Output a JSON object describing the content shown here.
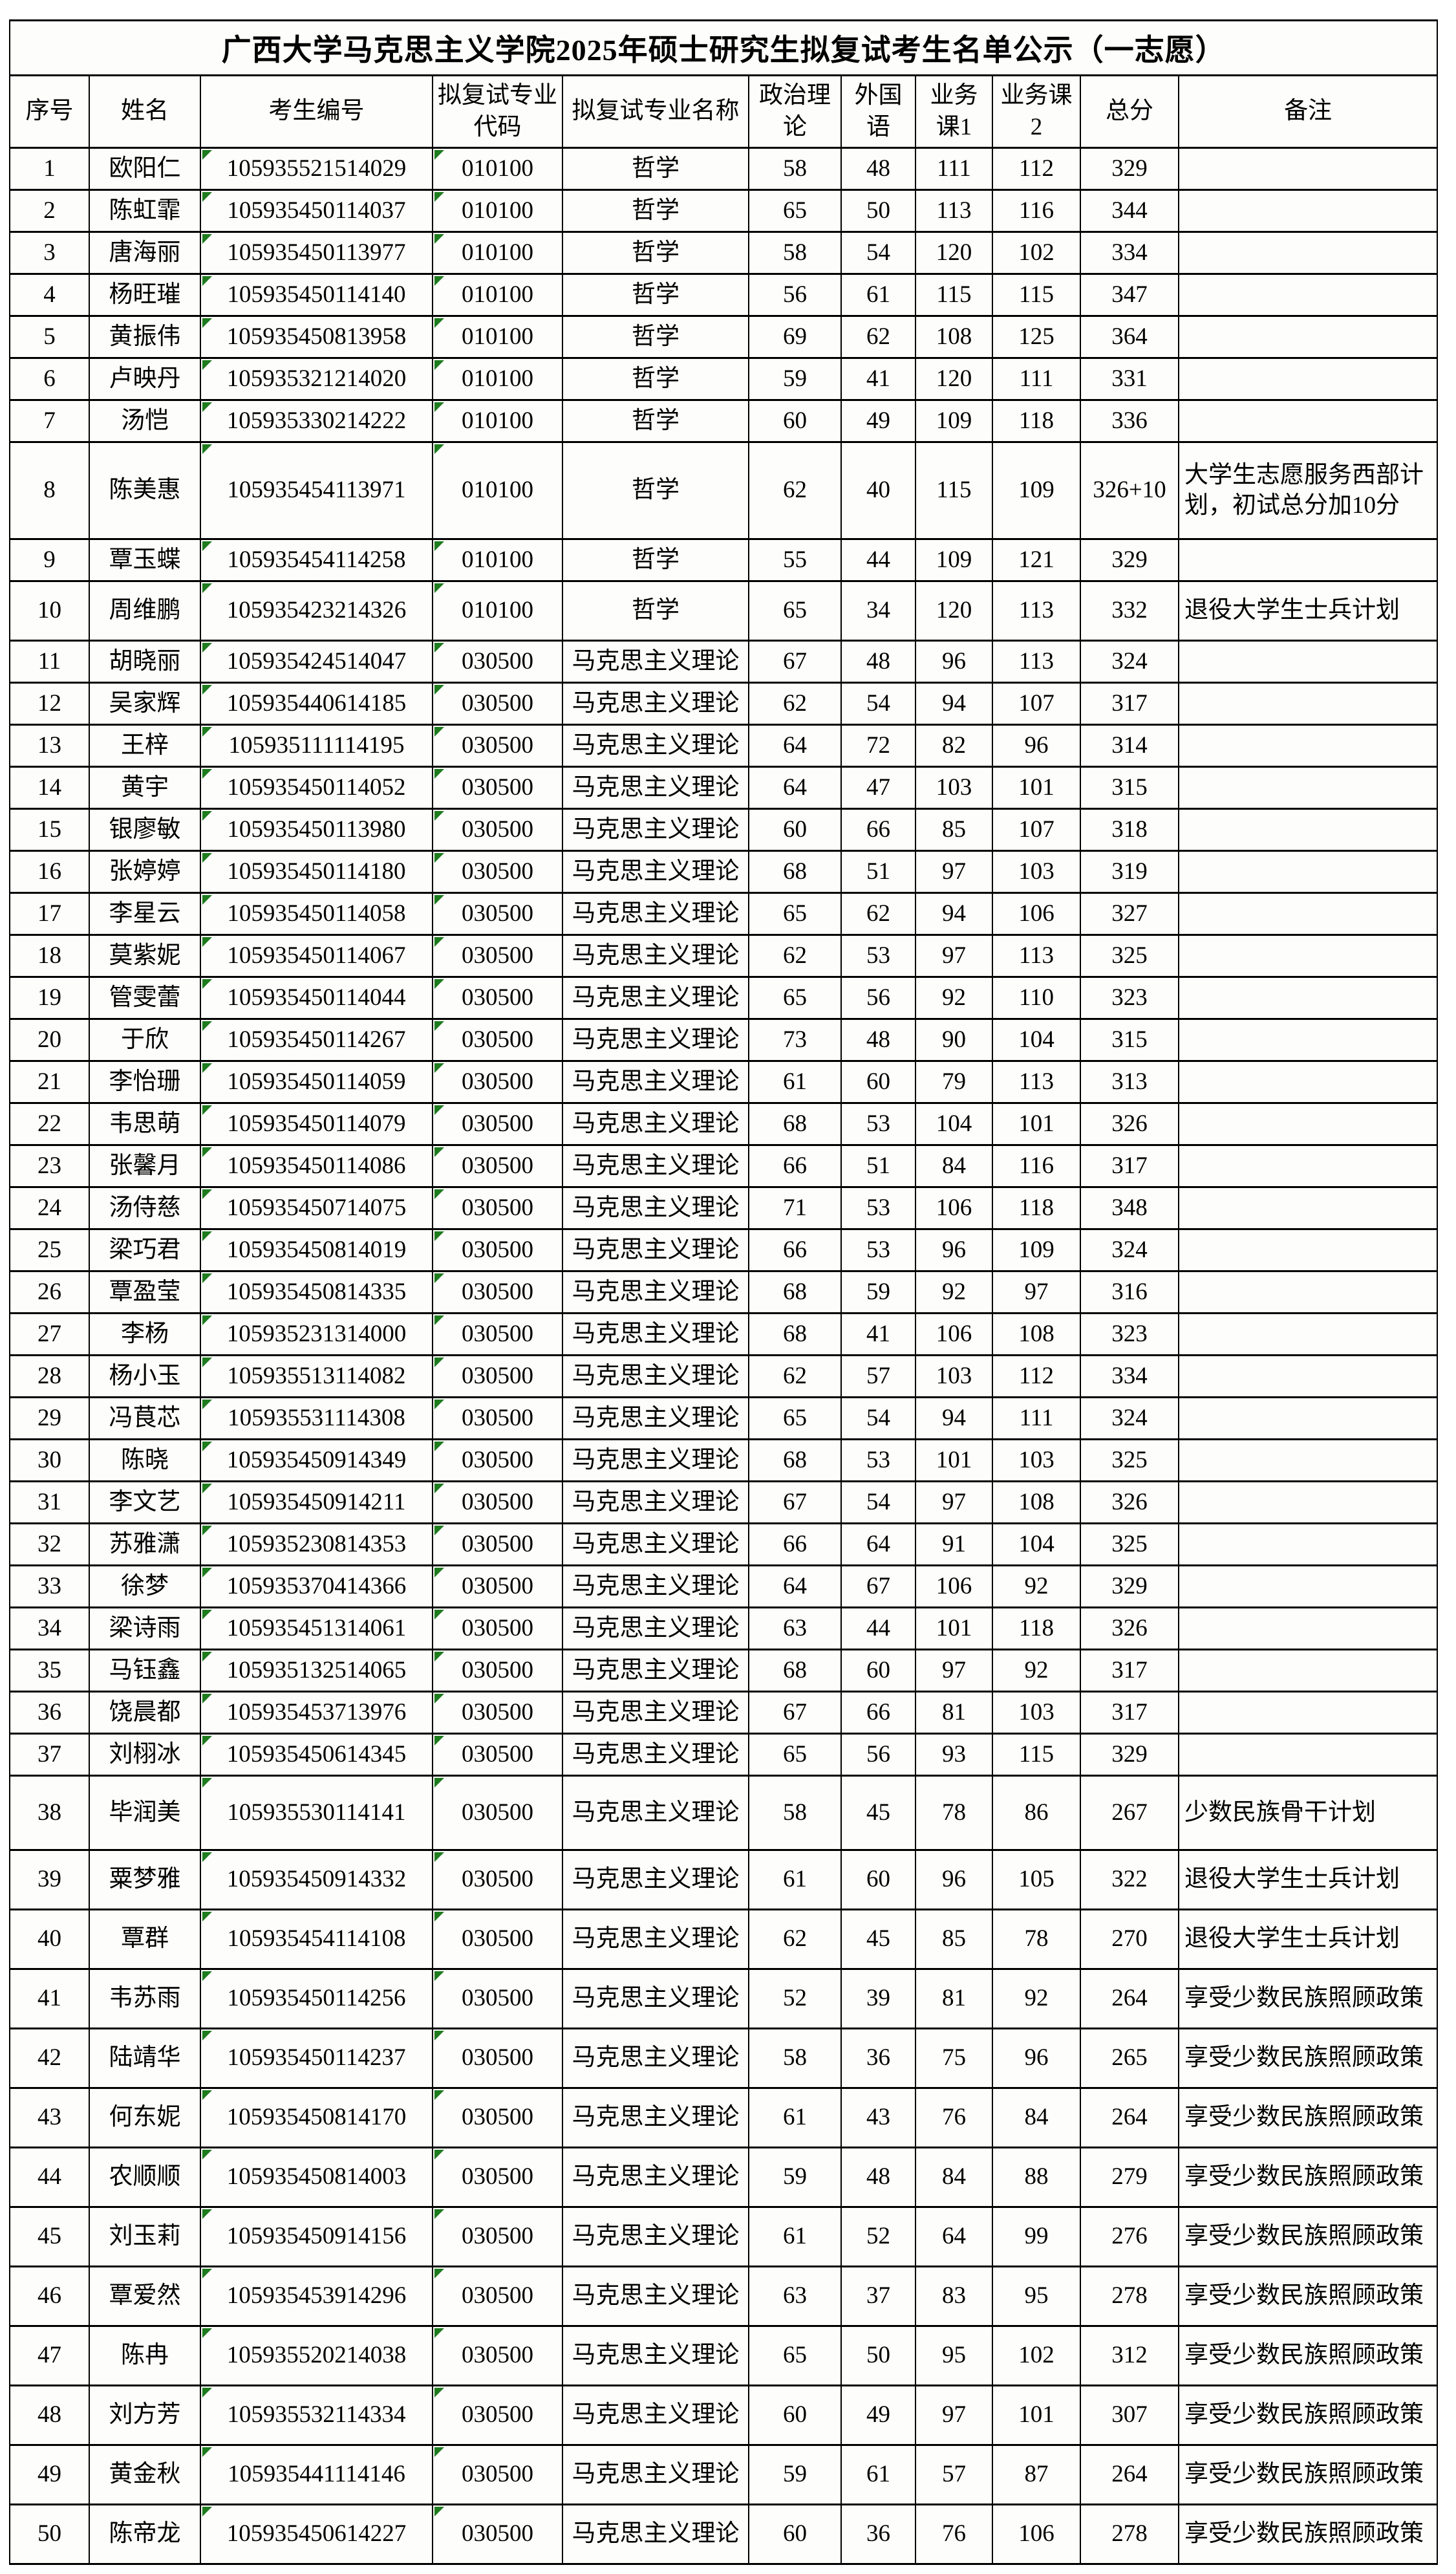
{
  "title": "广西大学马克思主义学院2025年硕士研究生拟复试考生名单公示（一志愿）",
  "colors": {
    "border": "#000000",
    "text": "#000000",
    "cell_background": "#fdfdfb",
    "flag_triangle_green": "#1e7b1e"
  },
  "table": {
    "columns": [
      "序号",
      "姓名",
      "考生编号",
      "拟复试专业代码",
      "拟复试专业名称",
      "政治理论",
      "外国语",
      "业务课1",
      "业务课2",
      "总分",
      "备注"
    ],
    "rows": [
      {
        "seq": "1",
        "name": "欧阳仁",
        "candidate_no": "105935521514029",
        "major_code": "010100",
        "major_name": "哲学",
        "politics": "58",
        "foreign_lang": "48",
        "course1": "111",
        "course2": "112",
        "total": "329",
        "remark": ""
      },
      {
        "seq": "2",
        "name": "陈虹霏",
        "candidate_no": "105935450114037",
        "major_code": "010100",
        "major_name": "哲学",
        "politics": "65",
        "foreign_lang": "50",
        "course1": "113",
        "course2": "116",
        "total": "344",
        "remark": ""
      },
      {
        "seq": "3",
        "name": "唐海丽",
        "candidate_no": "105935450113977",
        "major_code": "010100",
        "major_name": "哲学",
        "politics": "58",
        "foreign_lang": "54",
        "course1": "120",
        "course2": "102",
        "total": "334",
        "remark": ""
      },
      {
        "seq": "4",
        "name": "杨旺璀",
        "candidate_no": "105935450114140",
        "major_code": "010100",
        "major_name": "哲学",
        "politics": "56",
        "foreign_lang": "61",
        "course1": "115",
        "course2": "115",
        "total": "347",
        "remark": ""
      },
      {
        "seq": "5",
        "name": "黄振伟",
        "candidate_no": "105935450813958",
        "major_code": "010100",
        "major_name": "哲学",
        "politics": "69",
        "foreign_lang": "62",
        "course1": "108",
        "course2": "125",
        "total": "364",
        "remark": ""
      },
      {
        "seq": "6",
        "name": "卢映丹",
        "candidate_no": "105935321214020",
        "major_code": "010100",
        "major_name": "哲学",
        "politics": "59",
        "foreign_lang": "41",
        "course1": "120",
        "course2": "111",
        "total": "331",
        "remark": ""
      },
      {
        "seq": "7",
        "name": "汤恺",
        "candidate_no": "105935330214222",
        "major_code": "010100",
        "major_name": "哲学",
        "politics": "60",
        "foreign_lang": "49",
        "course1": "109",
        "course2": "118",
        "total": "336",
        "remark": ""
      },
      {
        "seq": "8",
        "name": "陈美惠",
        "candidate_no": "105935454113971",
        "major_code": "010100",
        "major_name": "哲学",
        "politics": "62",
        "foreign_lang": "40",
        "course1": "115",
        "course2": "109",
        "total": "326+10",
        "remark": "大学生志愿服务西部计划，初试总分加10分"
      },
      {
        "seq": "9",
        "name": "覃玉蝶",
        "candidate_no": "105935454114258",
        "major_code": "010100",
        "major_name": "哲学",
        "politics": "55",
        "foreign_lang": "44",
        "course1": "109",
        "course2": "121",
        "total": "329",
        "remark": ""
      },
      {
        "seq": "10",
        "name": "周维鹏",
        "candidate_no": "105935423214326",
        "major_code": "010100",
        "major_name": "哲学",
        "politics": "65",
        "foreign_lang": "34",
        "course1": "120",
        "course2": "113",
        "total": "332",
        "remark": "退役大学生士兵计划"
      },
      {
        "seq": "11",
        "name": "胡晓丽",
        "candidate_no": "105935424514047",
        "major_code": "030500",
        "major_name": "马克思主义理论",
        "politics": "67",
        "foreign_lang": "48",
        "course1": "96",
        "course2": "113",
        "total": "324",
        "remark": ""
      },
      {
        "seq": "12",
        "name": "吴家辉",
        "candidate_no": "105935440614185",
        "major_code": "030500",
        "major_name": "马克思主义理论",
        "politics": "62",
        "foreign_lang": "54",
        "course1": "94",
        "course2": "107",
        "total": "317",
        "remark": ""
      },
      {
        "seq": "13",
        "name": "王梓",
        "candidate_no": "105935111114195",
        "major_code": "030500",
        "major_name": "马克思主义理论",
        "politics": "64",
        "foreign_lang": "72",
        "course1": "82",
        "course2": "96",
        "total": "314",
        "remark": ""
      },
      {
        "seq": "14",
        "name": "黄宇",
        "candidate_no": "105935450114052",
        "major_code": "030500",
        "major_name": "马克思主义理论",
        "politics": "64",
        "foreign_lang": "47",
        "course1": "103",
        "course2": "101",
        "total": "315",
        "remark": ""
      },
      {
        "seq": "15",
        "name": "银廖敏",
        "candidate_no": "105935450113980",
        "major_code": "030500",
        "major_name": "马克思主义理论",
        "politics": "60",
        "foreign_lang": "66",
        "course1": "85",
        "course2": "107",
        "total": "318",
        "remark": ""
      },
      {
        "seq": "16",
        "name": "张婷婷",
        "candidate_no": "105935450114180",
        "major_code": "030500",
        "major_name": "马克思主义理论",
        "politics": "68",
        "foreign_lang": "51",
        "course1": "97",
        "course2": "103",
        "total": "319",
        "remark": ""
      },
      {
        "seq": "17",
        "name": "李星云",
        "candidate_no": "105935450114058",
        "major_code": "030500",
        "major_name": "马克思主义理论",
        "politics": "65",
        "foreign_lang": "62",
        "course1": "94",
        "course2": "106",
        "total": "327",
        "remark": ""
      },
      {
        "seq": "18",
        "name": "莫紫妮",
        "candidate_no": "105935450114067",
        "major_code": "030500",
        "major_name": "马克思主义理论",
        "politics": "62",
        "foreign_lang": "53",
        "course1": "97",
        "course2": "113",
        "total": "325",
        "remark": ""
      },
      {
        "seq": "19",
        "name": "管雯蕾",
        "candidate_no": "105935450114044",
        "major_code": "030500",
        "major_name": "马克思主义理论",
        "politics": "65",
        "foreign_lang": "56",
        "course1": "92",
        "course2": "110",
        "total": "323",
        "remark": ""
      },
      {
        "seq": "20",
        "name": "于欣",
        "candidate_no": "105935450114267",
        "major_code": "030500",
        "major_name": "马克思主义理论",
        "politics": "73",
        "foreign_lang": "48",
        "course1": "90",
        "course2": "104",
        "total": "315",
        "remark": ""
      },
      {
        "seq": "21",
        "name": "李怡珊",
        "candidate_no": "105935450114059",
        "major_code": "030500",
        "major_name": "马克思主义理论",
        "politics": "61",
        "foreign_lang": "60",
        "course1": "79",
        "course2": "113",
        "total": "313",
        "remark": ""
      },
      {
        "seq": "22",
        "name": "韦思萌",
        "candidate_no": "105935450114079",
        "major_code": "030500",
        "major_name": "马克思主义理论",
        "politics": "68",
        "foreign_lang": "53",
        "course1": "104",
        "course2": "101",
        "total": "326",
        "remark": ""
      },
      {
        "seq": "23",
        "name": "张馨月",
        "candidate_no": "105935450114086",
        "major_code": "030500",
        "major_name": "马克思主义理论",
        "politics": "66",
        "foreign_lang": "51",
        "course1": "84",
        "course2": "116",
        "total": "317",
        "remark": ""
      },
      {
        "seq": "24",
        "name": "汤侍慈",
        "candidate_no": "105935450714075",
        "major_code": "030500",
        "major_name": "马克思主义理论",
        "politics": "71",
        "foreign_lang": "53",
        "course1": "106",
        "course2": "118",
        "total": "348",
        "remark": ""
      },
      {
        "seq": "25",
        "name": "梁巧君",
        "candidate_no": "105935450814019",
        "major_code": "030500",
        "major_name": "马克思主义理论",
        "politics": "66",
        "foreign_lang": "53",
        "course1": "96",
        "course2": "109",
        "total": "324",
        "remark": ""
      },
      {
        "seq": "26",
        "name": "覃盈莹",
        "candidate_no": "105935450814335",
        "major_code": "030500",
        "major_name": "马克思主义理论",
        "politics": "68",
        "foreign_lang": "59",
        "course1": "92",
        "course2": "97",
        "total": "316",
        "remark": ""
      },
      {
        "seq": "27",
        "name": "李杨",
        "candidate_no": "105935231314000",
        "major_code": "030500",
        "major_name": "马克思主义理论",
        "politics": "68",
        "foreign_lang": "41",
        "course1": "106",
        "course2": "108",
        "total": "323",
        "remark": ""
      },
      {
        "seq": "28",
        "name": "杨小玉",
        "candidate_no": "105935513114082",
        "major_code": "030500",
        "major_name": "马克思主义理论",
        "politics": "62",
        "foreign_lang": "57",
        "course1": "103",
        "course2": "112",
        "total": "334",
        "remark": ""
      },
      {
        "seq": "29",
        "name": "冯茛芯",
        "candidate_no": "105935531114308",
        "major_code": "030500",
        "major_name": "马克思主义理论",
        "politics": "65",
        "foreign_lang": "54",
        "course1": "94",
        "course2": "111",
        "total": "324",
        "remark": ""
      },
      {
        "seq": "30",
        "name": "陈晓",
        "candidate_no": "105935450914349",
        "major_code": "030500",
        "major_name": "马克思主义理论",
        "politics": "68",
        "foreign_lang": "53",
        "course1": "101",
        "course2": "103",
        "total": "325",
        "remark": ""
      },
      {
        "seq": "31",
        "name": "李文艺",
        "candidate_no": "105935450914211",
        "major_code": "030500",
        "major_name": "马克思主义理论",
        "politics": "67",
        "foreign_lang": "54",
        "course1": "97",
        "course2": "108",
        "total": "326",
        "remark": ""
      },
      {
        "seq": "32",
        "name": "苏雅潇",
        "candidate_no": "105935230814353",
        "major_code": "030500",
        "major_name": "马克思主义理论",
        "politics": "66",
        "foreign_lang": "64",
        "course1": "91",
        "course2": "104",
        "total": "325",
        "remark": ""
      },
      {
        "seq": "33",
        "name": "徐梦",
        "candidate_no": "105935370414366",
        "major_code": "030500",
        "major_name": "马克思主义理论",
        "politics": "64",
        "foreign_lang": "67",
        "course1": "106",
        "course2": "92",
        "total": "329",
        "remark": ""
      },
      {
        "seq": "34",
        "name": "梁诗雨",
        "candidate_no": "105935451314061",
        "major_code": "030500",
        "major_name": "马克思主义理论",
        "politics": "63",
        "foreign_lang": "44",
        "course1": "101",
        "course2": "118",
        "total": "326",
        "remark": ""
      },
      {
        "seq": "35",
        "name": "马钰鑫",
        "candidate_no": "105935132514065",
        "major_code": "030500",
        "major_name": "马克思主义理论",
        "politics": "68",
        "foreign_lang": "60",
        "course1": "97",
        "course2": "92",
        "total": "317",
        "remark": ""
      },
      {
        "seq": "36",
        "name": "饶晨都",
        "candidate_no": "105935453713976",
        "major_code": "030500",
        "major_name": "马克思主义理论",
        "politics": "67",
        "foreign_lang": "66",
        "course1": "81",
        "course2": "103",
        "total": "317",
        "remark": ""
      },
      {
        "seq": "37",
        "name": "刘栩冰",
        "candidate_no": "105935450614345",
        "major_code": "030500",
        "major_name": "马克思主义理论",
        "politics": "65",
        "foreign_lang": "56",
        "course1": "93",
        "course2": "115",
        "total": "329",
        "remark": ""
      },
      {
        "seq": "38",
        "name": "毕润美",
        "candidate_no": "105935530114141",
        "major_code": "030500",
        "major_name": "马克思主义理论",
        "politics": "58",
        "foreign_lang": "45",
        "course1": "78",
        "course2": "86",
        "total": "267",
        "remark": "少数民族骨干计划"
      },
      {
        "seq": "39",
        "name": "粟梦雅",
        "candidate_no": "105935450914332",
        "major_code": "030500",
        "major_name": "马克思主义理论",
        "politics": "61",
        "foreign_lang": "60",
        "course1": "96",
        "course2": "105",
        "total": "322",
        "remark": "退役大学生士兵计划"
      },
      {
        "seq": "40",
        "name": "覃群",
        "candidate_no": "105935454114108",
        "major_code": "030500",
        "major_name": "马克思主义理论",
        "politics": "62",
        "foreign_lang": "45",
        "course1": "85",
        "course2": "78",
        "total": "270",
        "remark": "退役大学生士兵计划"
      },
      {
        "seq": "41",
        "name": "韦苏雨",
        "candidate_no": "105935450114256",
        "major_code": "030500",
        "major_name": "马克思主义理论",
        "politics": "52",
        "foreign_lang": "39",
        "course1": "81",
        "course2": "92",
        "total": "264",
        "remark": "享受少数民族照顾政策"
      },
      {
        "seq": "42",
        "name": "陆靖华",
        "candidate_no": "105935450114237",
        "major_code": "030500",
        "major_name": "马克思主义理论",
        "politics": "58",
        "foreign_lang": "36",
        "course1": "75",
        "course2": "96",
        "total": "265",
        "remark": "享受少数民族照顾政策"
      },
      {
        "seq": "43",
        "name": "何东妮",
        "candidate_no": "105935450814170",
        "major_code": "030500",
        "major_name": "马克思主义理论",
        "politics": "61",
        "foreign_lang": "43",
        "course1": "76",
        "course2": "84",
        "total": "264",
        "remark": "享受少数民族照顾政策"
      },
      {
        "seq": "44",
        "name": "农顺顺",
        "candidate_no": "105935450814003",
        "major_code": "030500",
        "major_name": "马克思主义理论",
        "politics": "59",
        "foreign_lang": "48",
        "course1": "84",
        "course2": "88",
        "total": "279",
        "remark": "享受少数民族照顾政策"
      },
      {
        "seq": "45",
        "name": "刘玉莉",
        "candidate_no": "105935450914156",
        "major_code": "030500",
        "major_name": "马克思主义理论",
        "politics": "61",
        "foreign_lang": "52",
        "course1": "64",
        "course2": "99",
        "total": "276",
        "remark": "享受少数民族照顾政策"
      },
      {
        "seq": "46",
        "name": "覃爱然",
        "candidate_no": "105935453914296",
        "major_code": "030500",
        "major_name": "马克思主义理论",
        "politics": "63",
        "foreign_lang": "37",
        "course1": "83",
        "course2": "95",
        "total": "278",
        "remark": "享受少数民族照顾政策"
      },
      {
        "seq": "47",
        "name": "陈冉",
        "candidate_no": "105935520214038",
        "major_code": "030500",
        "major_name": "马克思主义理论",
        "politics": "65",
        "foreign_lang": "50",
        "course1": "95",
        "course2": "102",
        "total": "312",
        "remark": "享受少数民族照顾政策"
      },
      {
        "seq": "48",
        "name": "刘方芳",
        "candidate_no": "105935532114334",
        "major_code": "030500",
        "major_name": "马克思主义理论",
        "politics": "60",
        "foreign_lang": "49",
        "course1": "97",
        "course2": "101",
        "total": "307",
        "remark": "享受少数民族照顾政策"
      },
      {
        "seq": "49",
        "name": "黄金秋",
        "candidate_no": "105935441114146",
        "major_code": "030500",
        "major_name": "马克思主义理论",
        "politics": "59",
        "foreign_lang": "61",
        "course1": "57",
        "course2": "87",
        "total": "264",
        "remark": "享受少数民族照顾政策"
      },
      {
        "seq": "50",
        "name": "陈帝龙",
        "candidate_no": "105935450614227",
        "major_code": "030500",
        "major_name": "马克思主义理论",
        "politics": "60",
        "foreign_lang": "36",
        "course1": "76",
        "course2": "106",
        "total": "278",
        "remark": "享受少数民族照顾政策"
      }
    ]
  }
}
